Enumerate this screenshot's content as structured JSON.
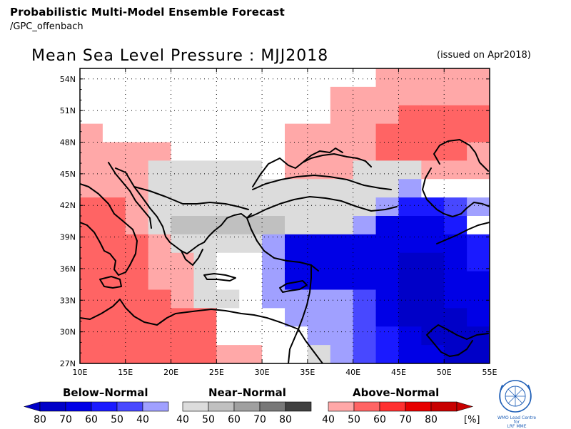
{
  "header": {
    "title": "Probabilistic Multi-Model Ensemble Forecast",
    "subtitle": "/GPC_offenbach"
  },
  "map": {
    "title": "Mean Sea Level Pressure : MJJ2018",
    "issued": "(issued on Apr2018)",
    "lat_labels": [
      "54N",
      "51N",
      "48N",
      "45N",
      "42N",
      "39N",
      "36N",
      "33N",
      "30N",
      "27N"
    ],
    "lon_labels": [
      "10E",
      "15E",
      "20E",
      "25E",
      "30E",
      "35E",
      "40E",
      "45E",
      "50E",
      "55E"
    ],
    "colors": {
      "below": [
        "#0000c8",
        "#0000e6",
        "#1a1aff",
        "#4848ff",
        "#a0a0ff"
      ],
      "near": [
        "#dcdcdc",
        "#c0c0c0",
        "#a0a0a0",
        "#787878",
        "#404040"
      ],
      "above": [
        "#ffa8a8",
        "#ff6464",
        "#ff3030",
        "#e60000",
        "#c80000"
      ],
      "white": "#ffffff"
    }
  },
  "legend": {
    "below": {
      "title": "Below–Normal",
      "ticks": [
        "80",
        "70",
        "60",
        "50",
        "40"
      ]
    },
    "near": {
      "title": "Near–Normal",
      "ticks": [
        "40",
        "50",
        "60",
        "70",
        "80"
      ]
    },
    "above": {
      "title": "Above–Normal",
      "ticks": [
        "40",
        "50",
        "60",
        "70",
        "80"
      ],
      "unit": "[%]"
    }
  },
  "logo": {
    "line1": "WMO Lead Centre for",
    "line2": "LRF MME"
  }
}
